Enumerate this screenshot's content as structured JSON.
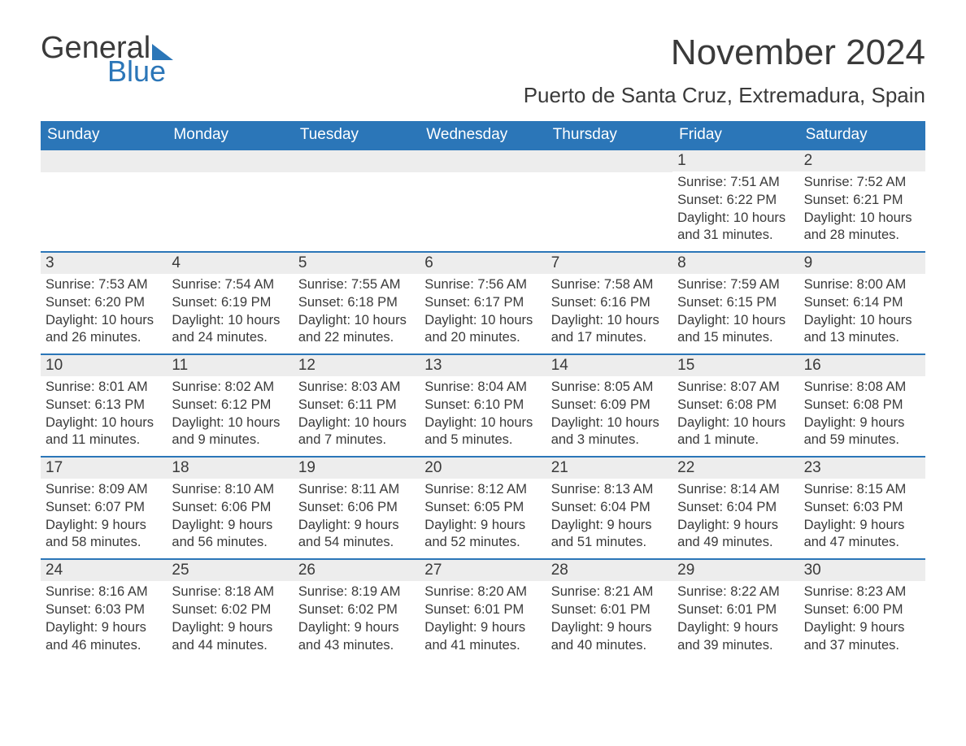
{
  "brand": {
    "general": "General",
    "blue": "Blue"
  },
  "title": "November 2024",
  "location": "Puerto de Santa Cruz, Extremadura, Spain",
  "colors": {
    "header_bg": "#2b76b8",
    "daynum_bg": "#ededed",
    "text": "#3a3a3a",
    "white": "#ffffff",
    "row_border": "#2b76b8"
  },
  "typography": {
    "title_fontsize": 44,
    "location_fontsize": 26,
    "weekday_fontsize": 19,
    "daynum_fontsize": 19,
    "body_fontsize": 16.5
  },
  "weekdays": [
    "Sunday",
    "Monday",
    "Tuesday",
    "Wednesday",
    "Thursday",
    "Friday",
    "Saturday"
  ],
  "weeks": [
    [
      null,
      null,
      null,
      null,
      null,
      {
        "n": "1",
        "sunrise": "7:51 AM",
        "sunset": "6:22 PM",
        "daylight": "10 hours and 31 minutes."
      },
      {
        "n": "2",
        "sunrise": "7:52 AM",
        "sunset": "6:21 PM",
        "daylight": "10 hours and 28 minutes."
      }
    ],
    [
      {
        "n": "3",
        "sunrise": "7:53 AM",
        "sunset": "6:20 PM",
        "daylight": "10 hours and 26 minutes."
      },
      {
        "n": "4",
        "sunrise": "7:54 AM",
        "sunset": "6:19 PM",
        "daylight": "10 hours and 24 minutes."
      },
      {
        "n": "5",
        "sunrise": "7:55 AM",
        "sunset": "6:18 PM",
        "daylight": "10 hours and 22 minutes."
      },
      {
        "n": "6",
        "sunrise": "7:56 AM",
        "sunset": "6:17 PM",
        "daylight": "10 hours and 20 minutes."
      },
      {
        "n": "7",
        "sunrise": "7:58 AM",
        "sunset": "6:16 PM",
        "daylight": "10 hours and 17 minutes."
      },
      {
        "n": "8",
        "sunrise": "7:59 AM",
        "sunset": "6:15 PM",
        "daylight": "10 hours and 15 minutes."
      },
      {
        "n": "9",
        "sunrise": "8:00 AM",
        "sunset": "6:14 PM",
        "daylight": "10 hours and 13 minutes."
      }
    ],
    [
      {
        "n": "10",
        "sunrise": "8:01 AM",
        "sunset": "6:13 PM",
        "daylight": "10 hours and 11 minutes."
      },
      {
        "n": "11",
        "sunrise": "8:02 AM",
        "sunset": "6:12 PM",
        "daylight": "10 hours and 9 minutes."
      },
      {
        "n": "12",
        "sunrise": "8:03 AM",
        "sunset": "6:11 PM",
        "daylight": "10 hours and 7 minutes."
      },
      {
        "n": "13",
        "sunrise": "8:04 AM",
        "sunset": "6:10 PM",
        "daylight": "10 hours and 5 minutes."
      },
      {
        "n": "14",
        "sunrise": "8:05 AM",
        "sunset": "6:09 PM",
        "daylight": "10 hours and 3 minutes."
      },
      {
        "n": "15",
        "sunrise": "8:07 AM",
        "sunset": "6:08 PM",
        "daylight": "10 hours and 1 minute."
      },
      {
        "n": "16",
        "sunrise": "8:08 AM",
        "sunset": "6:08 PM",
        "daylight": "9 hours and 59 minutes."
      }
    ],
    [
      {
        "n": "17",
        "sunrise": "8:09 AM",
        "sunset": "6:07 PM",
        "daylight": "9 hours and 58 minutes."
      },
      {
        "n": "18",
        "sunrise": "8:10 AM",
        "sunset": "6:06 PM",
        "daylight": "9 hours and 56 minutes."
      },
      {
        "n": "19",
        "sunrise": "8:11 AM",
        "sunset": "6:06 PM",
        "daylight": "9 hours and 54 minutes."
      },
      {
        "n": "20",
        "sunrise": "8:12 AM",
        "sunset": "6:05 PM",
        "daylight": "9 hours and 52 minutes."
      },
      {
        "n": "21",
        "sunrise": "8:13 AM",
        "sunset": "6:04 PM",
        "daylight": "9 hours and 51 minutes."
      },
      {
        "n": "22",
        "sunrise": "8:14 AM",
        "sunset": "6:04 PM",
        "daylight": "9 hours and 49 minutes."
      },
      {
        "n": "23",
        "sunrise": "8:15 AM",
        "sunset": "6:03 PM",
        "daylight": "9 hours and 47 minutes."
      }
    ],
    [
      {
        "n": "24",
        "sunrise": "8:16 AM",
        "sunset": "6:03 PM",
        "daylight": "9 hours and 46 minutes."
      },
      {
        "n": "25",
        "sunrise": "8:18 AM",
        "sunset": "6:02 PM",
        "daylight": "9 hours and 44 minutes."
      },
      {
        "n": "26",
        "sunrise": "8:19 AM",
        "sunset": "6:02 PM",
        "daylight": "9 hours and 43 minutes."
      },
      {
        "n": "27",
        "sunrise": "8:20 AM",
        "sunset": "6:01 PM",
        "daylight": "9 hours and 41 minutes."
      },
      {
        "n": "28",
        "sunrise": "8:21 AM",
        "sunset": "6:01 PM",
        "daylight": "9 hours and 40 minutes."
      },
      {
        "n": "29",
        "sunrise": "8:22 AM",
        "sunset": "6:01 PM",
        "daylight": "9 hours and 39 minutes."
      },
      {
        "n": "30",
        "sunrise": "8:23 AM",
        "sunset": "6:00 PM",
        "daylight": "9 hours and 37 minutes."
      }
    ]
  ],
  "labels": {
    "sunrise": "Sunrise",
    "sunset": "Sunset",
    "daylight": "Daylight"
  }
}
